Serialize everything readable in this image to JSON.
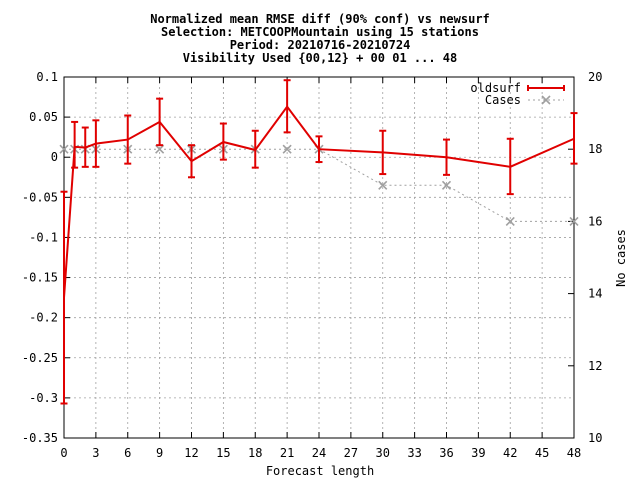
{
  "chart_data": {
    "type": "line",
    "title_lines": [
      "Normalized mean RMSE diff (90% conf) vs newsurf",
      "Selection: METCOOPMountain using    15 stations",
      "Period: 20210716-20210724",
      "Visibility   Used {00,12} + 00 01 ... 48"
    ],
    "xlabel": "Forecast length",
    "ylabel_left": "",
    "ylabel_right": "No cases",
    "xlim": [
      0,
      48
    ],
    "ylim_left": [
      -0.35,
      0.1
    ],
    "ylim_right": [
      10,
      20
    ],
    "x_ticks": [
      0,
      3,
      6,
      9,
      12,
      15,
      18,
      21,
      24,
      27,
      30,
      33,
      36,
      39,
      42,
      45,
      48
    ],
    "y_ticks_left": [
      -0.35,
      -0.3,
      -0.25,
      -0.2,
      -0.15,
      -0.1,
      -0.05,
      0,
      0.05,
      0.1
    ],
    "y_tick_labels_left": [
      "-0.35",
      "-0.3",
      "-0.25",
      "-0.2",
      "-0.15",
      "-0.1",
      "-0.05",
      "0",
      "0.05",
      "0.1"
    ],
    "y_ticks_right": [
      10,
      12,
      14,
      16,
      18,
      20
    ],
    "grid": true,
    "legend_position": "top-right",
    "series": [
      {
        "name": "oldsurf",
        "axis": "left",
        "color": "#e00000",
        "style": "line-errorbars",
        "x": [
          0,
          1,
          2,
          3,
          6,
          9,
          12,
          15,
          18,
          21,
          24,
          30,
          36,
          42,
          48
        ],
        "y": [
          -0.175,
          0.013,
          0.012,
          0.017,
          0.022,
          0.044,
          -0.005,
          0.019,
          0.009,
          0.063,
          0.01,
          0.006,
          0.0,
          -0.012,
          0.023
        ],
        "y_low": [
          -0.307,
          -0.013,
          -0.012,
          -0.012,
          -0.008,
          0.015,
          -0.025,
          -0.003,
          -0.013,
          0.031,
          -0.006,
          -0.021,
          -0.022,
          -0.046,
          -0.008
        ],
        "y_high": [
          -0.043,
          0.044,
          0.037,
          0.046,
          0.052,
          0.073,
          0.015,
          0.042,
          0.033,
          0.096,
          0.026,
          0.033,
          0.022,
          0.023,
          0.055
        ]
      },
      {
        "name": "Cases",
        "axis": "right",
        "color": "#a0a0a0",
        "style": "dotted-cross",
        "x": [
          0,
          1,
          2,
          3,
          6,
          9,
          12,
          15,
          18,
          21,
          24,
          30,
          36,
          42,
          48
        ],
        "y": [
          18,
          18,
          18,
          18,
          18,
          18,
          18,
          18,
          18,
          18,
          18,
          17,
          17,
          16,
          16
        ]
      }
    ]
  }
}
